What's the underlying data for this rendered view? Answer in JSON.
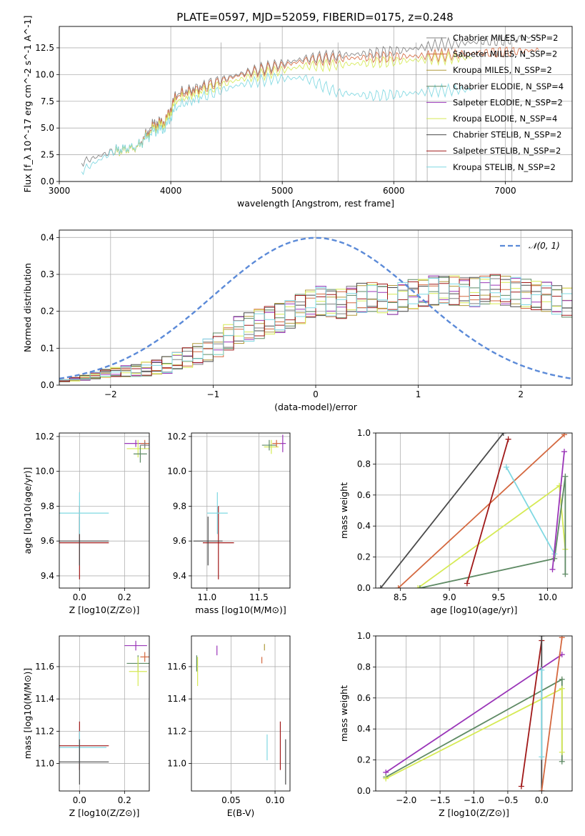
{
  "title": "PLATE=0597, MJD=52059, FIBERID=0175, z=0.248",
  "colors": {
    "chabrier_miles": "#808080",
    "salpeter_miles": "#d4683f",
    "kroupa_miles": "#b09a3a",
    "chabrier_elodie": "#5e8a64",
    "salpeter_elodie": "#9a35b8",
    "kroupa_elodie": "#d6ea55",
    "chabrier_stelib": "#4a4a4a",
    "salpeter_stelib": "#a01818",
    "kroupa_stelib": "#7fd8e2",
    "normal": "#5b8ad8"
  },
  "chart_data": [
    {
      "id": "spectrum",
      "type": "line",
      "xlabel": "wavelength [Angstrom, rest frame]",
      "ylabel": "Flux [f_λ 10^-17 erg cm^-2 s^-1 A^-1]",
      "xlim": [
        3000,
        7600
      ],
      "ylim": [
        0,
        14.5
      ],
      "xticks": [
        "3000",
        "4000",
        "5000",
        "6000",
        "7000"
      ],
      "yticks": [
        "0.0",
        "2.5",
        "5.0",
        "7.5",
        "10.0",
        "12.5"
      ],
      "legend_position": "top-right",
      "legend": [
        "Chabrier MILES, N_SSP=2",
        "Salpeter MILES, N_SSP=2",
        "Kroupa MILES, N_SSP=2",
        "Chabrier ELODIE, N_SSP=4",
        "Salpeter ELODIE, N_SSP=2",
        "Kroupa ELODIE, N_SSP=4",
        "Chabrier STELIB, N_SSP=2",
        "Salpeter STELIB, N_SSP=2",
        "Kroupa STELIB, N_SSP=2"
      ],
      "series": [
        {
          "name": "Chabrier MILES, N_SSP=2",
          "x": [
            3200,
            3500,
            3700,
            3850,
            3950,
            4050,
            4300,
            4600,
            4900,
            5200,
            5500,
            5800,
            6100,
            6400,
            6700,
            7000,
            7300
          ],
          "y": [
            1.8,
            2.9,
            3.2,
            5.5,
            5.6,
            8.2,
            9.0,
            10.0,
            10.8,
            11.5,
            11.8,
            12.0,
            12.3,
            12.8,
            13.0,
            13.2,
            13.6
          ]
        },
        {
          "name": "Salpeter MILES, N_SSP=2",
          "x": [
            3500,
            3700,
            3850,
            3950,
            4050,
            4300,
            4600,
            4900,
            5200,
            5500,
            5800,
            6100,
            6400,
            6700,
            7000,
            7300
          ],
          "y": [
            2.8,
            3.2,
            5.2,
            5.6,
            8.0,
            8.8,
            9.9,
            10.6,
            11.3,
            11.5,
            11.6,
            11.7,
            11.8,
            12.0,
            12.1,
            12.3
          ]
        },
        {
          "name": "Kroupa ELODIE, N_SSP=4",
          "x": [
            3500,
            3700,
            3850,
            3950,
            4050,
            4300,
            4600,
            4900,
            5200,
            5500,
            5800,
            6100,
            6400,
            6700
          ],
          "y": [
            2.8,
            3.2,
            5.0,
            5.4,
            7.6,
            8.5,
            9.5,
            10.2,
            10.8,
            10.9,
            11.1,
            11.3,
            11.5,
            11.6
          ]
        },
        {
          "name": "Kroupa STELIB, N_SSP=2",
          "x": [
            3200,
            3500,
            3700,
            3850,
            3950,
            4050,
            4300,
            4600,
            4900,
            5200,
            5500,
            5800,
            6100,
            6400,
            6700
          ],
          "y": [
            1.0,
            2.9,
            3.3,
            4.7,
            5.0,
            7.0,
            8.0,
            9.0,
            9.6,
            9.7,
            8.3,
            8.0,
            8.2,
            8.5,
            8.6
          ]
        }
      ]
    },
    {
      "id": "residuals",
      "type": "line",
      "xlabel": "(data-model)/error",
      "ylabel": "Normed distribution",
      "xlim": [
        -2.5,
        2.5
      ],
      "ylim": [
        0,
        0.42
      ],
      "xticks": [
        "−2",
        "−1",
        "0",
        "1",
        "2"
      ],
      "yticks": [
        "0.0",
        "0.1",
        "0.2",
        "0.3",
        "0.4"
      ],
      "legend_position": "top-right",
      "legend": [
        "𝒩(0, 1)"
      ],
      "histogram_x": [
        -2.5,
        -2.25,
        -2.0,
        -1.75,
        -1.5,
        -1.25,
        -1.0,
        -0.75,
        -0.5,
        -0.25,
        0.0,
        0.25,
        0.5,
        0.75,
        1.0,
        1.25,
        1.5,
        1.75,
        2.0,
        2.25,
        2.5
      ],
      "histogram_y": [
        0.01,
        0.02,
        0.035,
        0.04,
        0.05,
        0.075,
        0.1,
        0.15,
        0.17,
        0.19,
        0.23,
        0.22,
        0.24,
        0.23,
        0.25,
        0.26,
        0.25,
        0.26,
        0.25,
        0.24,
        0.22
      ]
    },
    {
      "id": "age_vs_Z",
      "type": "scatter",
      "xlabel": "Z [log10(Z/Z⊙)]",
      "ylabel": "age [log10(age/yr)]",
      "xlim": [
        -0.09,
        0.31
      ],
      "ylim": [
        9.33,
        10.22
      ],
      "xticks": [
        "0.0",
        "0.2"
      ],
      "yticks": [
        "9.4",
        "9.6",
        "9.8",
        "10.0",
        "10.2"
      ],
      "points": [
        {
          "series": "Salpeter STELIB",
          "x": 0.0,
          "y": 9.59,
          "xerr": 0.13,
          "yerr": 0.21
        },
        {
          "series": "Chabrier STELIB",
          "x": 0.0,
          "y": 9.6,
          "xerr": 0.13,
          "yerr": 0.14
        },
        {
          "series": "Kroupa STELIB",
          "x": 0.0,
          "y": 9.76,
          "xerr": 0.13,
          "yerr": 0.12
        },
        {
          "series": "Salpeter ELODIE",
          "x": 0.25,
          "y": 10.16,
          "xerr": 0.05,
          "yerr": 0.02
        },
        {
          "series": "Kroupa ELODIE",
          "x": 0.26,
          "y": 10.13,
          "xerr": 0.05,
          "yerr": 0.05
        },
        {
          "series": "Chabrier ELODIE",
          "x": 0.27,
          "y": 10.1,
          "xerr": 0.03,
          "yerr": 0.05
        },
        {
          "series": "Salpeter MILES",
          "x": 0.29,
          "y": 10.16,
          "xerr": 0.02,
          "yerr": 0.02
        },
        {
          "series": "Chabrier MILES",
          "x": 0.29,
          "y": 10.15,
          "xerr": 0.02,
          "yerr": 0.02
        }
      ]
    },
    {
      "id": "age_vs_mass",
      "type": "scatter",
      "xlabel": "mass [log10(M/M⊙)]",
      "ylabel": "",
      "xlim": [
        10.85,
        11.8
      ],
      "ylim": [
        9.33,
        10.22
      ],
      "xticks": [
        "11.0",
        "11.5"
      ],
      "yticks": [
        "9.4",
        "9.6",
        "9.8",
        "10.0",
        "10.2"
      ],
      "points": [
        {
          "series": "Salpeter STELIB",
          "x": 11.11,
          "y": 9.59,
          "xerr": 0.15,
          "yerr": 0.21
        },
        {
          "series": "Chabrier STELIB",
          "x": 11.01,
          "y": 9.6,
          "xerr": 0.14,
          "yerr": 0.14
        },
        {
          "series": "Kroupa STELIB",
          "x": 11.1,
          "y": 9.76,
          "xerr": 0.1,
          "yerr": 0.12
        },
        {
          "series": "Salpeter ELODIE",
          "x": 11.73,
          "y": 10.16,
          "xerr": 0.03,
          "yerr": 0.05
        },
        {
          "series": "Kroupa ELODIE",
          "x": 11.62,
          "y": 10.14,
          "xerr": 0.07,
          "yerr": 0.04
        },
        {
          "series": "Chabrier ELODIE",
          "x": 11.6,
          "y": 10.15,
          "xerr": 0.07,
          "yerr": 0.03
        },
        {
          "series": "Salpeter MILES",
          "x": 11.67,
          "y": 10.16,
          "xerr": 0.04,
          "yerr": 0.02
        }
      ]
    },
    {
      "id": "mass_weight_vs_age",
      "type": "line",
      "xlabel": "age [log10(age/yr)]",
      "ylabel": "mass weight",
      "xlim": [
        8.25,
        10.25
      ],
      "ylim": [
        0,
        1
      ],
      "xticks": [
        "8.5",
        "9.0",
        "9.5",
        "10.0"
      ],
      "yticks": [
        "0.0",
        "0.2",
        "0.4",
        "0.6",
        "0.8",
        "1.0"
      ],
      "series": [
        {
          "name": "Chabrier STELIB",
          "x": [
            8.3,
            9.55
          ],
          "y": [
            0.0,
            1.0
          ]
        },
        {
          "name": "Salpeter MILES",
          "x": [
            8.48,
            10.17
          ],
          "y": [
            0.0,
            0.99
          ]
        },
        {
          "name": "Kroupa ELODIE",
          "x": [
            8.68,
            10.12,
            10.18
          ],
          "y": [
            0.0,
            0.66,
            0.25
          ]
        },
        {
          "name": "Chabrier ELODIE",
          "x": [
            8.7,
            10.07,
            10.18,
            10.18
          ],
          "y": [
            0.0,
            0.19,
            0.72,
            0.09
          ]
        },
        {
          "name": "Salpeter STELIB",
          "x": [
            9.18,
            9.6
          ],
          "y": [
            0.03,
            0.96
          ]
        },
        {
          "name": "Kroupa STELIB",
          "x": [
            9.58,
            10.07
          ],
          "y": [
            0.78,
            0.22
          ]
        },
        {
          "name": "Salpeter ELODIE",
          "x": [
            10.05,
            10.17
          ],
          "y": [
            0.12,
            0.88
          ]
        }
      ]
    },
    {
      "id": "mass_vs_Z",
      "type": "scatter",
      "xlabel": "Z [log10(Z/Z⊙)]",
      "ylabel": "mass [log10(M/M⊙)]",
      "xlim": [
        -0.09,
        0.31
      ],
      "ylim": [
        10.83,
        11.79
      ],
      "xticks": [
        "0.0",
        "0.2"
      ],
      "yticks": [
        "11.0",
        "11.2",
        "11.4",
        "11.6"
      ],
      "points": [
        {
          "series": "Salpeter STELIB",
          "x": 0.0,
          "y": 11.11,
          "xerr": 0.13,
          "yerr": 0.15
        },
        {
          "series": "Kroupa STELIB",
          "x": 0.0,
          "y": 11.1,
          "xerr": 0.12,
          "yerr": 0.1
        },
        {
          "series": "Chabrier STELIB",
          "x": 0.0,
          "y": 11.01,
          "xerr": 0.13,
          "yerr": 0.14
        },
        {
          "series": "Salpeter ELODIE",
          "x": 0.25,
          "y": 11.73,
          "xerr": 0.05,
          "yerr": 0.03
        },
        {
          "series": "Chabrier ELODIE",
          "x": 0.26,
          "y": 11.62,
          "xerr": 0.05,
          "yerr": 0.05
        },
        {
          "series": "Kroupa ELODIE",
          "x": 0.26,
          "y": 11.57,
          "xerr": 0.04,
          "yerr": 0.09
        },
        {
          "series": "Salpeter MILES",
          "x": 0.29,
          "y": 11.66,
          "xerr": 0.02,
          "yerr": 0.03
        }
      ]
    },
    {
      "id": "mass_vs_ebv",
      "type": "scatter",
      "xlabel": "E(B-V)",
      "ylabel": "",
      "xlim": [
        0.005,
        0.117
      ],
      "ylim": [
        10.83,
        11.79
      ],
      "xticks": [
        "0.05",
        "0.10"
      ],
      "yticks": [
        "11.0",
        "11.2",
        "11.4",
        "11.6"
      ],
      "points": [
        {
          "series": "Chabrier ELODIE",
          "x": 0.011,
          "y": 11.62,
          "yerr": 0.05
        },
        {
          "series": "Kroupa ELODIE",
          "x": 0.012,
          "y": 11.57,
          "yerr": 0.09
        },
        {
          "series": "Salpeter ELODIE",
          "x": 0.034,
          "y": 11.7,
          "yerr": 0.03
        },
        {
          "series": "Salpeter MILES",
          "x": 0.085,
          "y": 11.64,
          "yerr": 0.02
        },
        {
          "series": "Kroupa MILES",
          "x": 0.088,
          "y": 11.72,
          "yerr": 0.02
        },
        {
          "series": "Kroupa STELIB",
          "x": 0.091,
          "y": 11.1,
          "yerr": 0.08
        },
        {
          "series": "Salpeter STELIB",
          "x": 0.106,
          "y": 11.11,
          "yerr": 0.15
        },
        {
          "series": "Chabrier STELIB",
          "x": 0.112,
          "y": 11.01,
          "yerr": 0.14
        }
      ]
    },
    {
      "id": "mass_weight_vs_Z",
      "type": "line",
      "xlabel": "Z [log10(Z/Z⊙)]",
      "ylabel": "mass weight",
      "xlim": [
        -2.45,
        0.45
      ],
      "ylim": [
        0,
        1
      ],
      "xticks": [
        "−2.0",
        "−1.5",
        "−1.0",
        "−0.5",
        "0.0"
      ],
      "yticks": [
        "0.0",
        "0.2",
        "0.4",
        "0.6",
        "0.8",
        "1.0"
      ],
      "series": [
        {
          "name": "Salpeter ELODIE",
          "x": [
            -2.3,
            0.3
          ],
          "y": [
            0.12,
            0.88
          ]
        },
        {
          "name": "Chabrier ELODIE",
          "x": [
            -2.3,
            0.3,
            0.3
          ],
          "y": [
            0.09,
            0.72,
            0.19
          ]
        },
        {
          "name": "Kroupa ELODIE",
          "x": [
            -2.3,
            0.3,
            0.3
          ],
          "y": [
            0.08,
            0.66,
            0.25
          ]
        },
        {
          "name": "Salpeter STELIB",
          "x": [
            -0.3,
            0.0
          ],
          "y": [
            0.03,
            0.97
          ]
        },
        {
          "name": "Chabrier STELIB",
          "x": [
            0.0,
            0.0
          ],
          "y": [
            0.0,
            1.0
          ]
        },
        {
          "name": "Kroupa STELIB",
          "x": [
            0.0,
            0.0
          ],
          "y": [
            0.22,
            0.78
          ]
        },
        {
          "name": "Salpeter MILES",
          "x": [
            0.0,
            0.3
          ],
          "y": [
            0.0,
            0.99
          ]
        }
      ]
    }
  ]
}
